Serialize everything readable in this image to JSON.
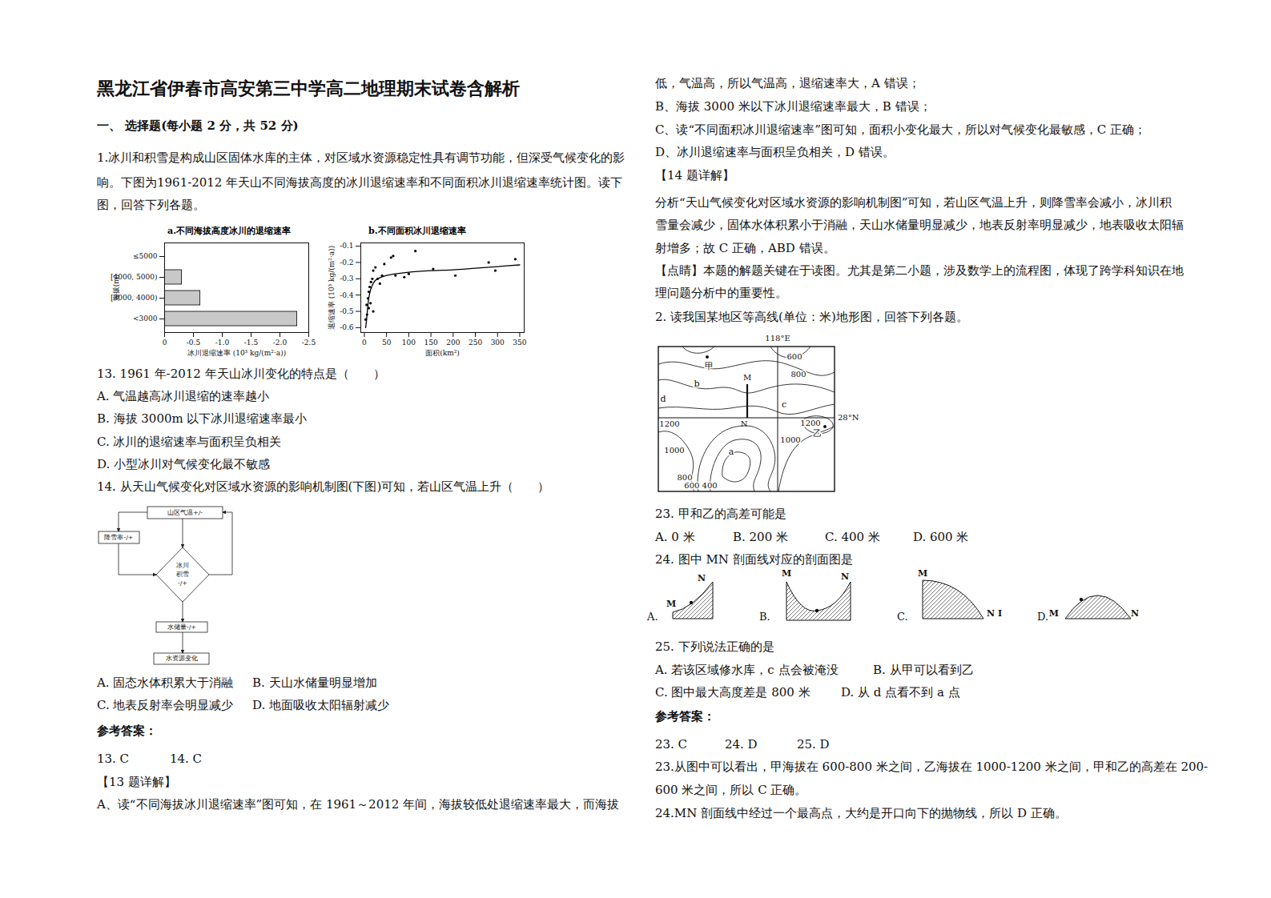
{
  "document": {
    "title": "黑龙江省伊春市高安第三中学高二地理期末试卷含解析",
    "left": [
      "一、 选择题(每小题 2 分，共 52 分)",
      "1.冰川和积雪是构成山区固体水库的主体，对区域水资源稳定性具有调节功能，但深受气候变化的影",
      "响。下图为1961-2012 年天山不同海拔高度的冰川退缩速率和不同面积冰川退缩速率统计图。读下",
      "图，回答下列各题。",
      "13.  1961 年-2012 年天山冰川变化的特点是（　　）",
      "A.  气温越高冰川退缩的速率越小",
      "B.  海拔 3000m 以下冰川退缩速率最小",
      "C.  冰川的退缩速率与面积呈负相关",
      "D.  小型冰川对气候变化最不敏感",
      "14.  从天山气候变化对区域水资源的影响机制图(下图)可知，若山区气温上升（　　）",
      [
        "A.  固态水体积累大于消融",
        "B.  天山水储量明显增加"
      ],
      [
        "C.  地表反射率会明显减少",
        "D.  地面吸收太阳辐射减少"
      ],
      "参考答案：",
      [
        "13.  C",
        "14.  C"
      ],
      "【13 题详解】",
      "A、读“不同海拔冰川退缩速率”图可知，在 1961～2012 年间，海拔较低处退缩速率最大，而海拔"
    ],
    "right": [
      "低，气温高，所以气温高，退缩速率大，A 错误；",
      "B、海拔 3000 米以下冰川退缩速率最大，B 错误；",
      "C、读“不同面积冰川退缩速率”图可知，面积小变化最大，所以对气候变化最敏感，C 正确；",
      "D、冰川退缩速率与面积呈负相关，D 错误。",
      "【14 题详解】",
      "分析“天山气候变化对区域水资源的影响机制图”可知，若山区气温上升，则降雪率会减小，冰川积",
      "雪量会减少，固体水体积累小于消融，天山水储量明显减少，地表反射率明显减少，地表吸收太阳辐",
      "射增多；故 C 正确，ABD 错误。",
      "【点睛】本题的解题关键在于读图。尤其是第二小题，涉及数学上的流程图，体现了跨学科知识在地",
      "理问题分析中的重要性。",
      "2. 读我国某地区等高线(单位：米)地形图，回答下列各题。",
      "23.  甲和乙的高差可能是",
      [
        "A.  0 米",
        "B.  200 米",
        "C.  400 米",
        "D.  600 米"
      ],
      "24.  图中 MN 剖面线对应的剖面图是",
      "25.  下列说法正确的是",
      [
        "A.  若该区域修水库，c 点会被淹没",
        "B.  从甲可以看到乙"
      ],
      [
        "C.  图中最大高度差是 800 米",
        "D.  从 d 点看不到 a 点"
      ],
      "参考答案：",
      [
        "23.  C",
        "24.  D",
        "25.  D"
      ],
      "23.从图中可以看出，甲海拔在 600-800 米之间，乙海拔在 1000-1200 米之间，甲和乙的高差在 200-",
      "600 米之间，所以 C 正确。",
      "24.MN 剖面线中经过一个最高点，大约是开口向下的抛物线，所以 D 正确。"
    ],
    "flowchart": {
      "nodes": [
        "山区气温+/-",
        "降雪率-/+",
        [
          "冰川",
          "积雪",
          "-/+"
        ],
        "水储量-/+",
        "水资源变化"
      ]
    },
    "map": {
      "meridian": "118°E",
      "parallel": "28°N",
      "contour_labels": [
        "600",
        "800",
        "1200",
        "1000",
        "800",
        "600 400",
        "1200",
        "1000"
      ],
      "places": [
        "甲",
        "乙",
        "a",
        "b",
        "c",
        "d"
      ],
      "profile": [
        "M",
        "N"
      ]
    },
    "sections": [
      {
        "option": "A.",
        "labels": [
          "M",
          "N"
        ]
      },
      {
        "option": "B.",
        "labels": [
          "M",
          "N"
        ]
      },
      {
        "option": "C.",
        "labels": [
          "M",
          "N I"
        ]
      },
      {
        "option": "D.",
        "labels": [
          "M",
          "N"
        ]
      }
    ]
  },
  "chart_data": [
    {
      "type": "bar",
      "orientation": "horizontal",
      "title": "a.不同海拔高度冰川的退缩速率",
      "x_label": "冰川退缩速率 (10³ kg/(m²·a))",
      "y_label": "海拔(m)",
      "categories": [
        "≤5000",
        "[4000, 5000)",
        "[3000, 4000)",
        "<3000"
      ],
      "values": [
        0,
        -0.3,
        -0.62,
        -2.3
      ],
      "color": "#c8c8c8",
      "xlim": [
        0,
        -2.5
      ],
      "xticks": [
        0,
        -0.5,
        {
          "value": -1,
          "label": "-1.0"
        },
        -1.5,
        {
          "value": -2,
          "label": "-2.0"
        },
        -2.5
      ],
      "grid": false
    },
    {
      "type": "scatter",
      "title": "b.不同面积冰川退缩速率",
      "x_label": "面积(km²)",
      "y_label": "退缩速率 (10³ kg/(m²·a))",
      "xlim": [
        -8,
        360
      ],
      "xticks": [
        0,
        50,
        100,
        150,
        200,
        250,
        300,
        350
      ],
      "ylim": [
        -0.63,
        -0.08
      ],
      "yticks": [
        -0.1,
        -0.2,
        -0.3,
        -0.4,
        -0.5,
        -0.6
      ],
      "grid": false,
      "series": [
        {
          "type": "scatter",
          "marker": "dot",
          "color": "#000000",
          "x": [
            3,
            5,
            6,
            8,
            10,
            10,
            12,
            14,
            15,
            18,
            20,
            20,
            25,
            30,
            35,
            40,
            45,
            60,
            65,
            70,
            90,
            100,
            115,
            155,
            205,
            280,
            295,
            340
          ],
          "values": [
            -0.55,
            -0.46,
            -0.52,
            -0.42,
            -0.38,
            -0.48,
            -0.35,
            -0.45,
            -0.32,
            -0.3,
            -0.5,
            -0.25,
            -0.23,
            -0.3,
            -0.33,
            -0.28,
            -0.21,
            -0.17,
            -0.16,
            -0.28,
            -0.29,
            -0.27,
            -0.13,
            -0.24,
            -0.28,
            -0.2,
            -0.25,
            -0.18
          ]
        },
        {
          "type": "line",
          "color": "#000000",
          "x": [
            3,
            5,
            10,
            15,
            25,
            50,
            100,
            150,
            200,
            250,
            300,
            350
          ],
          "values": [
            -0.6,
            -0.55,
            -0.42,
            -0.36,
            -0.31,
            -0.28,
            -0.26,
            -0.25,
            -0.245,
            -0.235,
            -0.225,
            -0.215
          ]
        }
      ]
    }
  ]
}
